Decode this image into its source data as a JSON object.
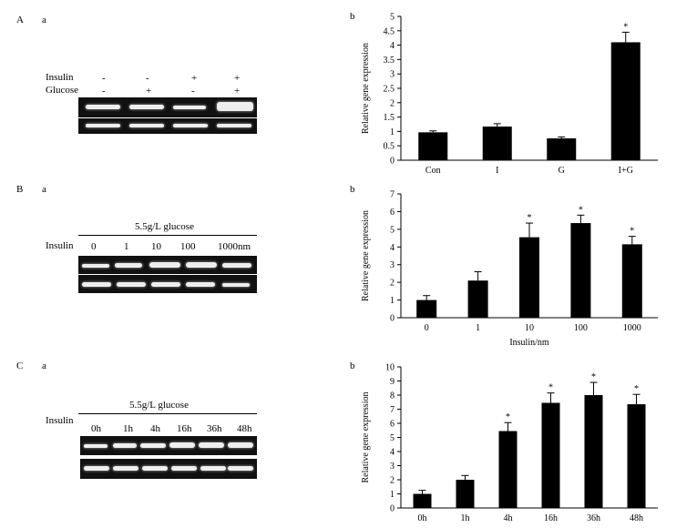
{
  "figure": {
    "A": {
      "letter": "A",
      "sub_a": "a",
      "sub_b": "b",
      "gel": {
        "row_labels": [
          "Insulin",
          "Glucose"
        ],
        "insulin": [
          "-",
          "-",
          "+",
          "+"
        ],
        "glucose": [
          "-",
          "+",
          "-",
          "+"
        ],
        "top_intensity": [
          0.8,
          0.85,
          0.7,
          1.0
        ],
        "bottom_intensity": [
          0.95,
          0.9,
          0.9,
          0.9
        ]
      }
    },
    "B": {
      "letter": "B",
      "sub_a": "a",
      "sub_b": "b",
      "gel": {
        "header": "5.5g/L glucose",
        "row_label": "Insulin",
        "lanes": [
          "0",
          "1",
          "10",
          "100",
          "1000nm"
        ],
        "top_intensity": [
          0.75,
          0.8,
          0.95,
          0.95,
          0.9
        ],
        "bottom_intensity": [
          0.95,
          0.95,
          0.95,
          0.95,
          0.85
        ]
      }
    },
    "C": {
      "letter": "C",
      "sub_a": "a",
      "sub_b": "b",
      "gel": {
        "header": "5.5g/L glucose",
        "row_label": "Insulin",
        "lanes": [
          "0h",
          "1h",
          "4h",
          "16h",
          "36h",
          "48h"
        ],
        "top_intensity": [
          0.7,
          0.8,
          0.9,
          0.95,
          0.95,
          0.95
        ],
        "bottom_intensity": [
          0.95,
          0.95,
          0.95,
          0.95,
          0.95,
          0.95
        ]
      }
    }
  },
  "chart_data": [
    {
      "type": "bar",
      "panel": "A-b",
      "categories": [
        "Con",
        "I",
        "G",
        "I+G"
      ],
      "values": [
        0.97,
        1.17,
        0.76,
        4.1
      ],
      "errors": [
        0.05,
        0.1,
        0.05,
        0.35
      ],
      "significant": [
        false,
        false,
        false,
        true
      ],
      "ylabel": "Relative gene expression",
      "xlabel": "",
      "ylim": [
        0,
        5
      ],
      "yticks": [
        "0",
        "0.5",
        "1",
        "1.5",
        "2",
        "2.5",
        "3",
        "3.5",
        "4",
        "4.5",
        "5"
      ],
      "sig_mark": "*",
      "bar_color": "#000000"
    },
    {
      "type": "bar",
      "panel": "B-b",
      "categories": [
        "0",
        "1",
        "10",
        "100",
        "1000"
      ],
      "values": [
        1.0,
        2.1,
        4.55,
        5.35,
        4.15
      ],
      "errors": [
        0.25,
        0.5,
        0.8,
        0.45,
        0.45
      ],
      "significant": [
        false,
        false,
        true,
        true,
        true
      ],
      "ylabel": "Relative gene expression",
      "xlabel": "Insulin/nm",
      "ylim": [
        0,
        7
      ],
      "yticks": [
        "0",
        "1",
        "2",
        "3",
        "4",
        "5",
        "6",
        "7"
      ],
      "sig_mark": "*",
      "bar_color": "#000000"
    },
    {
      "type": "bar",
      "panel": "C-b",
      "categories": [
        "0h",
        "1h",
        "4h",
        "16h",
        "36h",
        "48h"
      ],
      "values": [
        1.0,
        2.0,
        5.45,
        7.45,
        8.0,
        7.35
      ],
      "errors": [
        0.25,
        0.3,
        0.6,
        0.7,
        0.9,
        0.7
      ],
      "significant": [
        false,
        false,
        true,
        true,
        true,
        true
      ],
      "ylabel": "Relative gene expression",
      "xlabel": "",
      "ylim": [
        0,
        10
      ],
      "yticks": [
        "0",
        "1",
        "2",
        "3",
        "4",
        "5",
        "6",
        "7",
        "8",
        "9",
        "10"
      ],
      "sig_mark": "*",
      "bar_color": "#000000"
    }
  ]
}
